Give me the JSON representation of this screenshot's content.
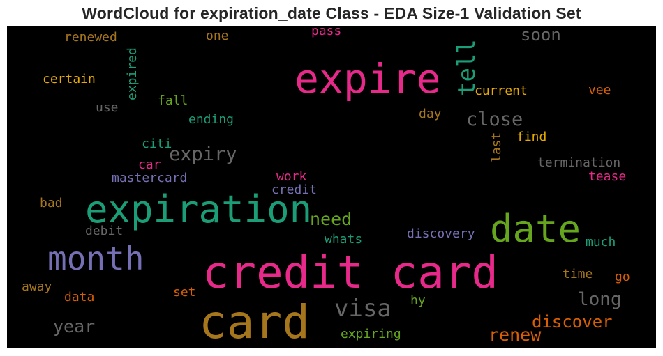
{
  "chart_data": {
    "type": "wordcloud",
    "title": "WordCloud for expiration_date Class - EDA Size-1 Validation Set",
    "background": "#000000",
    "words": [
      {
        "text": "card",
        "color": "#a6761d"
      },
      {
        "text": "credit card",
        "color": "#e7298a"
      },
      {
        "text": "expiration",
        "color": "#1b9e77"
      },
      {
        "text": "expire",
        "color": "#e7298a"
      },
      {
        "text": "date",
        "color": "#66a61e"
      },
      {
        "text": "month",
        "color": "#7570b3"
      },
      {
        "text": "visa",
        "color": "#666666"
      },
      {
        "text": "tell",
        "color": "#1b9e77"
      },
      {
        "text": "close",
        "color": "#666666"
      },
      {
        "text": "expiry",
        "color": "#666666"
      },
      {
        "text": "soon",
        "color": "#666666"
      },
      {
        "text": "need",
        "color": "#66a61e"
      },
      {
        "text": "discover",
        "color": "#d95f02"
      },
      {
        "text": "renew",
        "color": "#d95f02"
      },
      {
        "text": "long",
        "color": "#666666"
      },
      {
        "text": "year",
        "color": "#666666"
      },
      {
        "text": "current",
        "color": "#e6ab02"
      },
      {
        "text": "certain",
        "color": "#e6ab02"
      },
      {
        "text": "renewed",
        "color": "#a6761d"
      },
      {
        "text": "one",
        "color": "#a6761d"
      },
      {
        "text": "pass",
        "color": "#e7298a"
      },
      {
        "text": "expired",
        "color": "#1b9e77"
      },
      {
        "text": "fall",
        "color": "#66a61e"
      },
      {
        "text": "use",
        "color": "#666666"
      },
      {
        "text": "ending",
        "color": "#1b9e77"
      },
      {
        "text": "day",
        "color": "#a6761d"
      },
      {
        "text": "vee",
        "color": "#d95f02"
      },
      {
        "text": "find",
        "color": "#e6ab02"
      },
      {
        "text": "last",
        "color": "#a6761d"
      },
      {
        "text": "termination",
        "color": "#666666"
      },
      {
        "text": "tease",
        "color": "#e7298a"
      },
      {
        "text": "citi",
        "color": "#1b9e77"
      },
      {
        "text": "car",
        "color": "#e7298a"
      },
      {
        "text": "mastercard",
        "color": "#7570b3"
      },
      {
        "text": "work",
        "color": "#e7298a"
      },
      {
        "text": "credit",
        "color": "#7570b3"
      },
      {
        "text": "bad",
        "color": "#a6761d"
      },
      {
        "text": "debit",
        "color": "#666666"
      },
      {
        "text": "discovery",
        "color": "#7570b3"
      },
      {
        "text": "whats",
        "color": "#1b9e77"
      },
      {
        "text": "much",
        "color": "#1b9e77"
      },
      {
        "text": "time",
        "color": "#a6761d"
      },
      {
        "text": "go",
        "color": "#d95f02"
      },
      {
        "text": "away",
        "color": "#a6761d"
      },
      {
        "text": "data",
        "color": "#d95f02"
      },
      {
        "text": "set",
        "color": "#d95f02"
      },
      {
        "text": "hy",
        "color": "#66a61e"
      },
      {
        "text": "expiring",
        "color": "#66a61e"
      }
    ]
  }
}
